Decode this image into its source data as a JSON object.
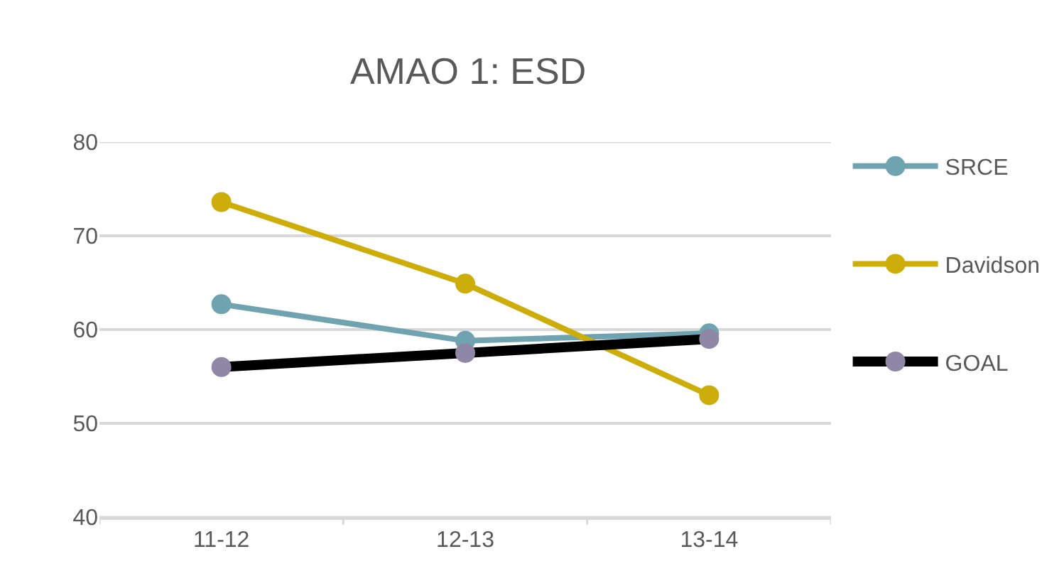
{
  "chart_data": {
    "type": "line",
    "title": "AMAO 1: ESD",
    "categories": [
      "11-12",
      "12-13",
      "13-14"
    ],
    "series": [
      {
        "name": "SRCE",
        "color": "#6fa3b0",
        "values": [
          62.7,
          58.8,
          59.6
        ]
      },
      {
        "name": "Davidson",
        "color": "#ccad0a",
        "values": [
          73.6,
          64.9,
          53.0
        ]
      },
      {
        "name": "GOAL",
        "color": "#000000",
        "colors": [
          "#8e87a6",
          "#8e87a6",
          "#8e87a6"
        ],
        "values": [
          56.0,
          57.5,
          59.0
        ]
      }
    ],
    "ylim": [
      40,
      80
    ],
    "yticks": [
      40,
      50,
      60,
      70,
      80
    ],
    "grid": "y",
    "legend": "right",
    "marker": "circle",
    "line_style": "solid"
  }
}
